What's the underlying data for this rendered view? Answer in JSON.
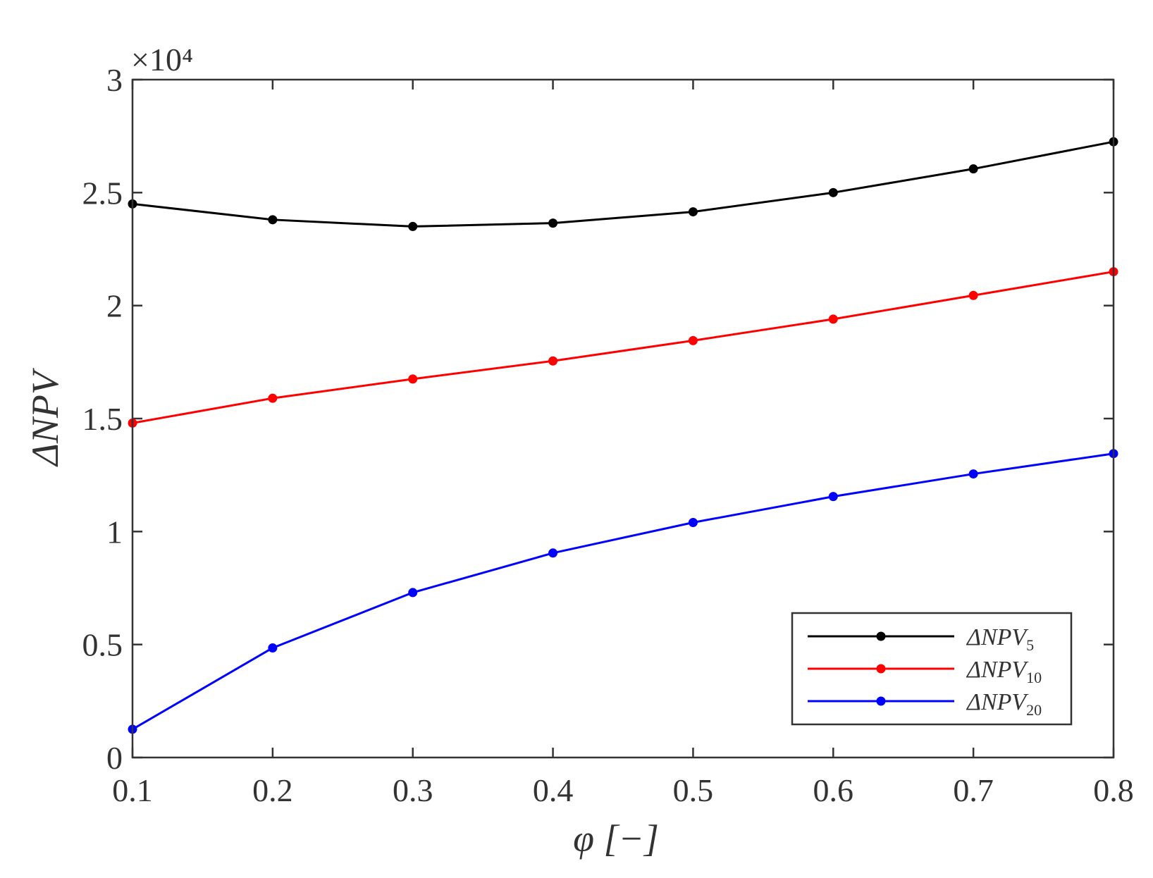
{
  "chart_data": {
    "type": "line",
    "xlabel": "φ [−]",
    "ylabel": "ΔNPV",
    "y_multiplier": "×10⁴",
    "xlim": [
      0.1,
      0.8
    ],
    "ylim": [
      0,
      3
    ],
    "x": [
      0.1,
      0.2,
      0.3,
      0.4,
      0.5,
      0.6,
      0.7,
      0.8
    ],
    "x_ticks": [
      "0.1",
      "0.2",
      "0.3",
      "0.4",
      "0.5",
      "0.6",
      "0.7",
      "0.8"
    ],
    "y_ticks": [
      "0",
      "0.5",
      "1",
      "1.5",
      "2",
      "2.5",
      "3"
    ],
    "y_tick_values": [
      0,
      0.5,
      1,
      1.5,
      2,
      2.5,
      3
    ],
    "grid": false,
    "legend_position": "bottom-right",
    "series": [
      {
        "name": "ΔNPV5",
        "name_base": "ΔNPV",
        "name_sub": "5",
        "color": "#000000",
        "values": [
          2.45,
          2.38,
          2.35,
          2.365,
          2.415,
          2.5,
          2.605,
          2.725
        ]
      },
      {
        "name": "ΔNPV10",
        "name_base": "ΔNPV",
        "name_sub": "10",
        "color": "#ff0000",
        "values": [
          1.48,
          1.59,
          1.675,
          1.755,
          1.845,
          1.94,
          2.045,
          2.15
        ]
      },
      {
        "name": "ΔNPV20",
        "name_base": "ΔNPV",
        "name_sub": "20",
        "color": "#0000ff",
        "values": [
          0.125,
          0.485,
          0.73,
          0.905,
          1.04,
          1.155,
          1.255,
          1.345
        ]
      }
    ]
  }
}
